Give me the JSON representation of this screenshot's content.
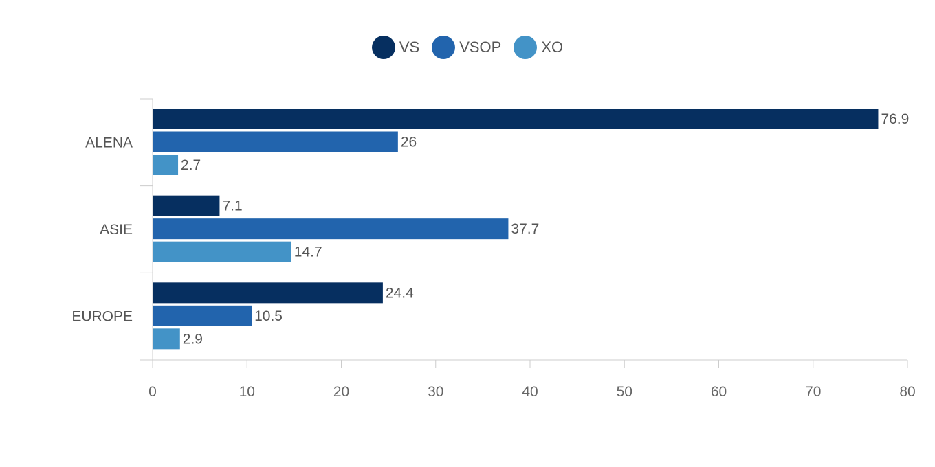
{
  "chart_data": {
    "type": "bar",
    "orientation": "horizontal",
    "title": "",
    "xlabel": "",
    "ylabel": "",
    "categories": [
      "ALENA",
      "ASIE",
      "EUROPE"
    ],
    "series": [
      {
        "name": "VS",
        "color": "#062f60",
        "values": [
          76.9,
          7.1,
          24.4
        ]
      },
      {
        "name": "VSOP",
        "color": "#2264ad",
        "values": [
          26,
          37.7,
          10.5
        ]
      },
      {
        "name": "XO",
        "color": "#4393c7",
        "values": [
          2.7,
          14.7,
          2.9
        ]
      }
    ],
    "data_labels": [
      [
        "76.9",
        "7.1",
        "24.4"
      ],
      [
        "26",
        "37.7",
        "10.5"
      ],
      [
        "2.7",
        "14.7",
        "2.9"
      ]
    ],
    "xlim": [
      0,
      80
    ],
    "x_ticks": [
      "0",
      "10",
      "20",
      "30",
      "40",
      "50",
      "60",
      "70",
      "80"
    ],
    "grid": false,
    "legend_position": "top-center"
  }
}
